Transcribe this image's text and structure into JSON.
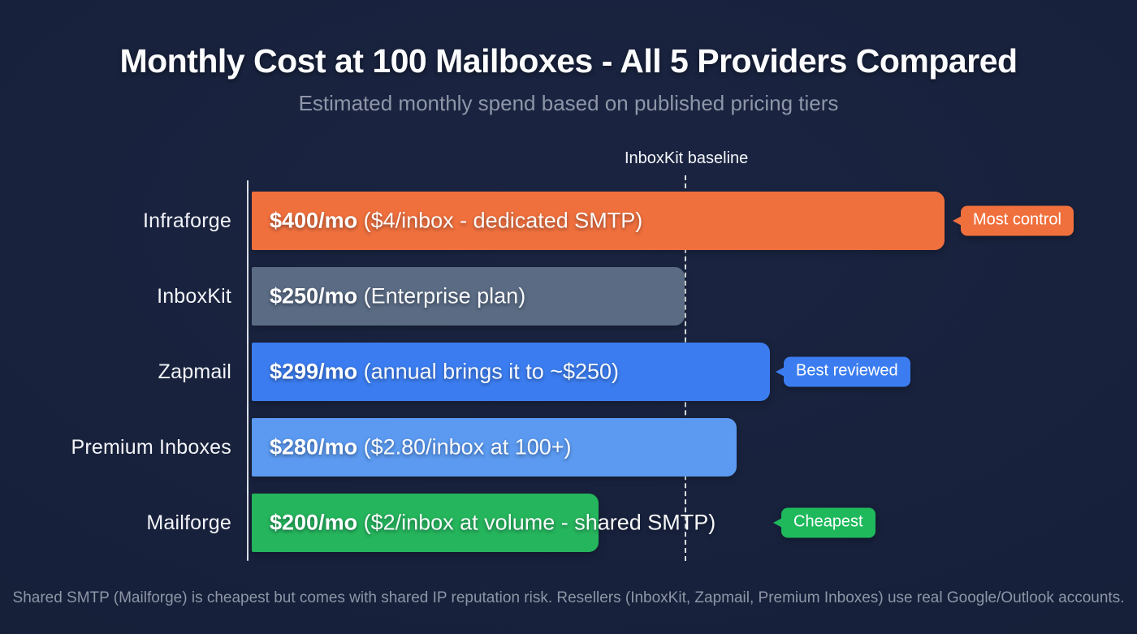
{
  "header": {
    "title": "Monthly Cost at 100 Mailboxes - All 5 Providers Compared",
    "subtitle": "Estimated monthly spend based on published pricing tiers"
  },
  "chart_data": {
    "type": "bar",
    "orientation": "horizontal",
    "title": "Monthly Cost at 100 Mailboxes - All 5 Providers Compared",
    "subtitle": "Estimated monthly spend based on published pricing tiers",
    "xlabel": "",
    "ylabel": "",
    "xlim": [
      0,
      400
    ],
    "grid": false,
    "baseline": {
      "label": "InboxKit baseline",
      "value": 250
    },
    "categories": [
      "Infraforge",
      "InboxKit",
      "Zapmail",
      "Premium Inboxes",
      "Mailforge"
    ],
    "values": [
      400,
      250,
      299,
      280,
      200
    ],
    "rows": [
      {
        "label": "Infraforge",
        "value": 400,
        "price": "$400/mo",
        "detail": "($4/inbox - dedicated SMTP)",
        "color": "#f0703d",
        "badge": "Most control",
        "badge_color": "#f0703d"
      },
      {
        "label": "InboxKit",
        "value": 250,
        "price": "$250/mo",
        "detail": "(Enterprise plan)",
        "color": "#5a6b83",
        "badge": null,
        "badge_color": null
      },
      {
        "label": "Zapmail",
        "value": 299,
        "price": "$299/mo",
        "detail": "(annual brings it to ~$250)",
        "color": "#3b7df0",
        "badge": "Best reviewed",
        "badge_color": "#3b7df0"
      },
      {
        "label": "Premium Inboxes",
        "value": 280,
        "price": "$280/mo",
        "detail": "($2.80/inbox at 100+)",
        "color": "#5b9af0",
        "badge": null,
        "badge_color": null
      },
      {
        "label": "Mailforge",
        "value": 200,
        "price": "$200/mo",
        "detail": "($2/inbox at volume - shared SMTP)",
        "color": "#25b55c",
        "badge": "Cheapest",
        "badge_color": "#1fb95c"
      }
    ]
  },
  "footer": {
    "note": "Shared SMTP (Mailforge) is cheapest but comes with shared IP reputation risk. Resellers (InboxKit, Zapmail, Premium Inboxes) use real Google/Outlook accounts."
  },
  "colors": {
    "background": "#151e36",
    "title_text": "#fbfcfe",
    "subtitle_text": "#8e96a8",
    "label_text": "#f2f4f8",
    "axis_line": "#ecf0f6",
    "baseline_dash": "#ffffff",
    "footnote_text": "#8d96a6",
    "bar_orange": "#f0703d",
    "bar_slate": "#5a6b83",
    "bar_blue": "#3b7df0",
    "bar_lightblue": "#5b9af0",
    "bar_green": "#25b55c"
  }
}
